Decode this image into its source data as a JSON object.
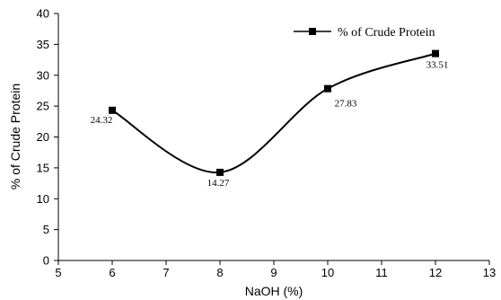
{
  "chart_data": {
    "type": "line",
    "xlabel": "NaOH (%)",
    "ylabel": "% of Crude Protein",
    "xlim": [
      5,
      13
    ],
    "ylim": [
      0,
      40
    ],
    "xticks": [
      5,
      6,
      7,
      8,
      9,
      10,
      11,
      12,
      13
    ],
    "yticks": [
      0,
      5,
      10,
      15,
      20,
      25,
      30,
      35,
      40
    ],
    "grid": false,
    "legend_position": "top-right",
    "smoothed": true,
    "series": [
      {
        "name": "% of Crude Protein",
        "marker": "square",
        "color": "#000000",
        "points": [
          {
            "x": 6,
            "y": 24.32,
            "label": "24.32"
          },
          {
            "x": 8,
            "y": 14.27,
            "label": "14.27"
          },
          {
            "x": 10,
            "y": 27.83,
            "label": "27.83"
          },
          {
            "x": 12,
            "y": 33.51,
            "label": "33.51"
          }
        ]
      }
    ]
  }
}
